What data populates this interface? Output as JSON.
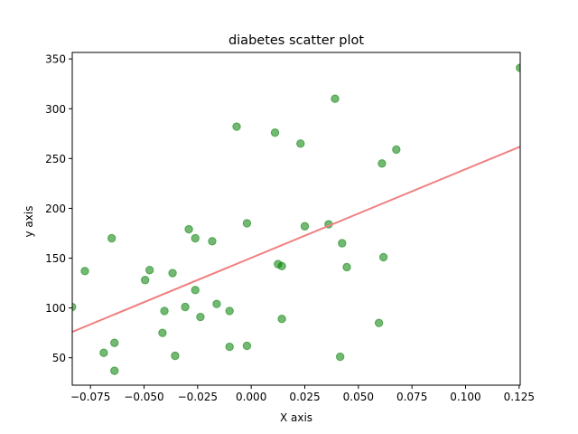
{
  "chart_data": {
    "type": "scatter",
    "title": "diabetes scatter plot",
    "xlabel": "X axis",
    "ylabel": "y axis",
    "xlim": [
      -0.0835,
      0.1255
    ],
    "ylim": [
      22.5,
      356.5
    ],
    "grid": false,
    "xticks": [
      -0.075,
      -0.05,
      -0.025,
      0.0,
      0.025,
      0.05,
      0.075,
      0.1,
      0.125
    ],
    "xtick_labels": [
      "−0.075",
      "−0.050",
      "−0.025",
      "0.000",
      "0.025",
      "0.050",
      "0.075",
      "0.100",
      "0.125"
    ],
    "yticks": [
      50,
      100,
      150,
      200,
      250,
      300,
      350
    ],
    "ytick_labels": [
      "50",
      "100",
      "150",
      "200",
      "250",
      "300",
      "350"
    ],
    "colors": {
      "points": "#008000",
      "points_alpha": 0.55,
      "line": "#f08080"
    },
    "series": [
      {
        "points": [
          {
            "x": -0.0836,
            "y": 101
          },
          {
            "x": -0.0776,
            "y": 137
          },
          {
            "x": -0.0688,
            "y": 55
          },
          {
            "x": -0.0651,
            "y": 170
          },
          {
            "x": -0.0638,
            "y": 65
          },
          {
            "x": -0.0638,
            "y": 37
          },
          {
            "x": -0.0495,
            "y": 128
          },
          {
            "x": -0.0474,
            "y": 138
          },
          {
            "x": -0.0414,
            "y": 75
          },
          {
            "x": -0.0405,
            "y": 97
          },
          {
            "x": -0.0367,
            "y": 135
          },
          {
            "x": -0.0355,
            "y": 52
          },
          {
            "x": -0.0308,
            "y": 101
          },
          {
            "x": -0.0291,
            "y": 179
          },
          {
            "x": -0.0261,
            "y": 118
          },
          {
            "x": -0.0261,
            "y": 170
          },
          {
            "x": -0.0237,
            "y": 91
          },
          {
            "x": -0.0182,
            "y": 167
          },
          {
            "x": -0.0161,
            "y": 104
          },
          {
            "x": -0.0101,
            "y": 97
          },
          {
            "x": -0.0101,
            "y": 61
          },
          {
            "x": -0.0068,
            "y": 282
          },
          {
            "x": -0.002,
            "y": 185
          },
          {
            "x": -0.002,
            "y": 62
          },
          {
            "x": 0.0111,
            "y": 276
          },
          {
            "x": 0.0125,
            "y": 144
          },
          {
            "x": 0.0143,
            "y": 142
          },
          {
            "x": 0.0143,
            "y": 89
          },
          {
            "x": 0.023,
            "y": 265
          },
          {
            "x": 0.025,
            "y": 182
          },
          {
            "x": 0.0361,
            "y": 184
          },
          {
            "x": 0.0391,
            "y": 310
          },
          {
            "x": 0.0415,
            "y": 51
          },
          {
            "x": 0.0424,
            "y": 165
          },
          {
            "x": 0.0446,
            "y": 141
          },
          {
            "x": 0.0596,
            "y": 85
          },
          {
            "x": 0.061,
            "y": 245
          },
          {
            "x": 0.0617,
            "y": 151
          },
          {
            "x": 0.0677,
            "y": 259
          },
          {
            "x": 0.1254,
            "y": 341
          }
        ]
      }
    ],
    "fit_line": {
      "x": [
        -0.0835,
        0.1255
      ],
      "y": [
        76,
        262
      ]
    }
  }
}
